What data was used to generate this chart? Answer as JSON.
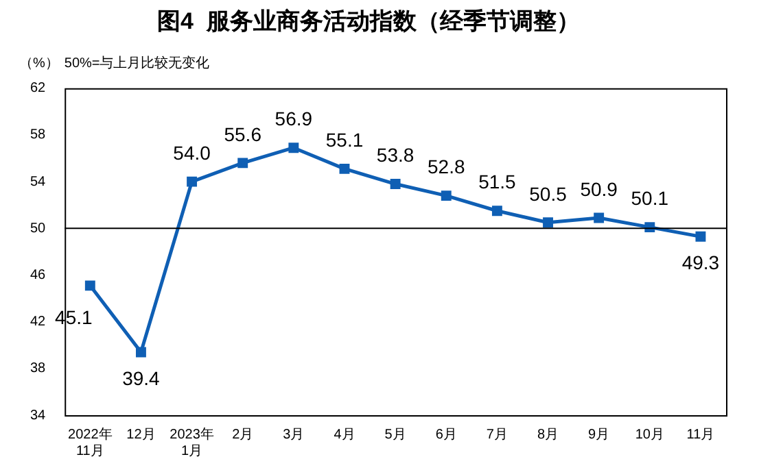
{
  "chart_data": {
    "type": "line",
    "title": "图4  服务业商务活动指数（经季节调整）",
    "ylabel": "（%）",
    "annotations": [
      "50%=与上月比较无变化"
    ],
    "categories": [
      "2022年\n11月",
      "12月",
      "2023年\n1月",
      "2月",
      "3月",
      "4月",
      "5月",
      "6月",
      "7月",
      "8月",
      "9月",
      "10月",
      "11月"
    ],
    "series": [
      {
        "color": "#0f5fb4",
        "values": [
          45.1,
          39.4,
          54.0,
          55.6,
          56.9,
          55.1,
          53.8,
          52.8,
          51.5,
          50.5,
          50.9,
          50.1,
          49.3
        ]
      }
    ],
    "value_labels": [
      "45.1",
      "39.4",
      "54.0",
      "55.6",
      "56.9",
      "55.1",
      "53.8",
      "52.8",
      "51.5",
      "50.5",
      "50.9",
      "50.1",
      "49.3"
    ],
    "ylim": [
      34,
      62
    ],
    "yticks": [
      34,
      38,
      42,
      46,
      50,
      54,
      58,
      62
    ],
    "ref_lines": [
      {
        "axis": "y",
        "value": 50,
        "color": "#000000"
      }
    ],
    "grid": false,
    "legend": false,
    "marker": "square",
    "line_style": "solid"
  }
}
